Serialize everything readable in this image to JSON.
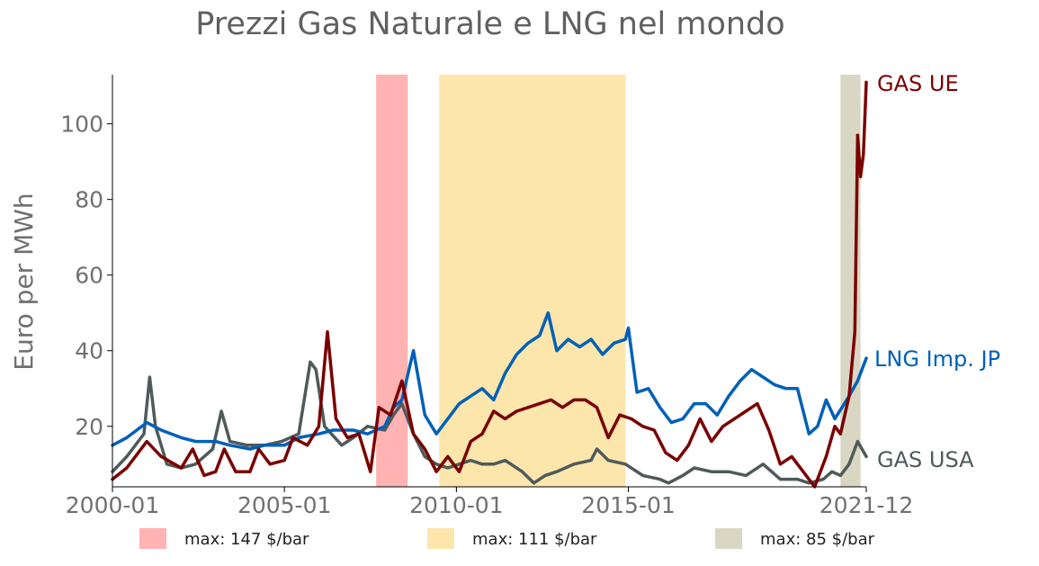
{
  "chart_data": {
    "type": "line",
    "title": "Prezzi Gas Naturale e LNG nel mondo",
    "xlabel": "",
    "ylabel": "Euro per MWh",
    "xlim": [
      "2000-01",
      "2021-12"
    ],
    "ylim": [
      4,
      113
    ],
    "x_ticks": [
      "2000-01",
      "2005-01",
      "2010-01",
      "2015-01",
      "2021-12"
    ],
    "y_ticks": [
      20,
      40,
      60,
      80,
      100
    ],
    "grid": false,
    "highlight_bands": [
      {
        "start": "2007-09",
        "end": "2008-08",
        "color": "#ffb3b3",
        "label": "max: 147 $/bar"
      },
      {
        "start": "2009-07",
        "end": "2014-12",
        "color": "#fce6ac",
        "label": "max: 111 $/bar"
      },
      {
        "start": "2021-03",
        "end": "2021-10",
        "color": "#d9d7c3",
        "label": "max: 85 $/bar"
      }
    ],
    "series": [
      {
        "name": "GAS UE",
        "color": "#7a0000",
        "points": [
          [
            "2000-01",
            6
          ],
          [
            "2000-06",
            9
          ],
          [
            "2001-01",
            16
          ],
          [
            "2001-06",
            12
          ],
          [
            "2002-01",
            9
          ],
          [
            "2002-05",
            14
          ],
          [
            "2002-09",
            7
          ],
          [
            "2003-01",
            8
          ],
          [
            "2003-04",
            14
          ],
          [
            "2003-08",
            8
          ],
          [
            "2004-01",
            8
          ],
          [
            "2004-04",
            14
          ],
          [
            "2004-08",
            10
          ],
          [
            "2005-01",
            11
          ],
          [
            "2005-04",
            17
          ],
          [
            "2005-09",
            15
          ],
          [
            "2006-01",
            20
          ],
          [
            "2006-04",
            45
          ],
          [
            "2006-07",
            22
          ],
          [
            "2006-11",
            17
          ],
          [
            "2007-03",
            18
          ],
          [
            "2007-07",
            8
          ],
          [
            "2007-10",
            25
          ],
          [
            "2008-02",
            23
          ],
          [
            "2008-06",
            32
          ],
          [
            "2008-10",
            18
          ],
          [
            "2009-02",
            14
          ],
          [
            "2009-06",
            8
          ],
          [
            "2009-10",
            12
          ],
          [
            "2010-02",
            8
          ],
          [
            "2010-06",
            16
          ],
          [
            "2010-10",
            18
          ],
          [
            "2011-02",
            24
          ],
          [
            "2011-06",
            22
          ],
          [
            "2011-10",
            24
          ],
          [
            "2012-02",
            25
          ],
          [
            "2012-06",
            26
          ],
          [
            "2012-10",
            27
          ],
          [
            "2013-02",
            25
          ],
          [
            "2013-06",
            27
          ],
          [
            "2013-10",
            27
          ],
          [
            "2014-02",
            25
          ],
          [
            "2014-06",
            17
          ],
          [
            "2014-10",
            23
          ],
          [
            "2015-02",
            22
          ],
          [
            "2015-06",
            20
          ],
          [
            "2015-10",
            19
          ],
          [
            "2016-02",
            13
          ],
          [
            "2016-06",
            11
          ],
          [
            "2016-10",
            15
          ],
          [
            "2017-02",
            22
          ],
          [
            "2017-06",
            16
          ],
          [
            "2017-10",
            20
          ],
          [
            "2018-02",
            22
          ],
          [
            "2018-06",
            24
          ],
          [
            "2018-10",
            26
          ],
          [
            "2019-02",
            19
          ],
          [
            "2019-06",
            10
          ],
          [
            "2019-10",
            12
          ],
          [
            "2020-02",
            8
          ],
          [
            "2020-06",
            4
          ],
          [
            "2020-10",
            12
          ],
          [
            "2021-01",
            20
          ],
          [
            "2021-03",
            18
          ],
          [
            "2021-06",
            28
          ],
          [
            "2021-08",
            45
          ],
          [
            "2021-09",
            97
          ],
          [
            "2021-10",
            86
          ],
          [
            "2021-11",
            92
          ],
          [
            "2021-12",
            111
          ]
        ]
      },
      {
        "name": "LNG Imp. JP",
        "color": "#0060b8",
        "points": [
          [
            "2000-01",
            15
          ],
          [
            "2000-06",
            17
          ],
          [
            "2001-01",
            21
          ],
          [
            "2001-06",
            19
          ],
          [
            "2002-01",
            17
          ],
          [
            "2002-06",
            16
          ],
          [
            "2003-01",
            16
          ],
          [
            "2003-06",
            15
          ],
          [
            "2004-01",
            14
          ],
          [
            "2004-06",
            15
          ],
          [
            "2005-01",
            15
          ],
          [
            "2005-06",
            17
          ],
          [
            "2006-01",
            18
          ],
          [
            "2006-06",
            19
          ],
          [
            "2007-01",
            19
          ],
          [
            "2007-06",
            18
          ],
          [
            "2007-12",
            20
          ],
          [
            "2008-03",
            25
          ],
          [
            "2008-06",
            27
          ],
          [
            "2008-10",
            40
          ],
          [
            "2009-02",
            23
          ],
          [
            "2009-06",
            18
          ],
          [
            "2009-10",
            22
          ],
          [
            "2010-02",
            26
          ],
          [
            "2010-06",
            28
          ],
          [
            "2010-10",
            30
          ],
          [
            "2011-02",
            27
          ],
          [
            "2011-06",
            34
          ],
          [
            "2011-10",
            39
          ],
          [
            "2012-02",
            42
          ],
          [
            "2012-06",
            44
          ],
          [
            "2012-09",
            50
          ],
          [
            "2012-12",
            40
          ],
          [
            "2013-04",
            43
          ],
          [
            "2013-08",
            41
          ],
          [
            "2013-12",
            43
          ],
          [
            "2014-04",
            39
          ],
          [
            "2014-08",
            42
          ],
          [
            "2014-12",
            43
          ],
          [
            "2015-01",
            46
          ],
          [
            "2015-04",
            29
          ],
          [
            "2015-08",
            30
          ],
          [
            "2015-12",
            25
          ],
          [
            "2016-04",
            21
          ],
          [
            "2016-08",
            22
          ],
          [
            "2016-12",
            26
          ],
          [
            "2017-04",
            26
          ],
          [
            "2017-08",
            23
          ],
          [
            "2017-12",
            28
          ],
          [
            "2018-04",
            32
          ],
          [
            "2018-08",
            35
          ],
          [
            "2018-12",
            33
          ],
          [
            "2019-04",
            31
          ],
          [
            "2019-08",
            30
          ],
          [
            "2019-12",
            30
          ],
          [
            "2020-04",
            18
          ],
          [
            "2020-07",
            20
          ],
          [
            "2020-10",
            27
          ],
          [
            "2021-01",
            22
          ],
          [
            "2021-06",
            28
          ],
          [
            "2021-09",
            32
          ],
          [
            "2021-12",
            38
          ]
        ]
      },
      {
        "name": "GAS USA",
        "color": "#4f5a5a",
        "points": [
          [
            "2000-01",
            8
          ],
          [
            "2000-06",
            12
          ],
          [
            "2000-12",
            18
          ],
          [
            "2001-02",
            33
          ],
          [
            "2001-04",
            20
          ],
          [
            "2001-08",
            10
          ],
          [
            "2002-01",
            9
          ],
          [
            "2002-06",
            10
          ],
          [
            "2002-12",
            14
          ],
          [
            "2003-03",
            24
          ],
          [
            "2003-06",
            16
          ],
          [
            "2003-12",
            15
          ],
          [
            "2004-06",
            15
          ],
          [
            "2004-12",
            16
          ],
          [
            "2005-06",
            18
          ],
          [
            "2005-10",
            37
          ],
          [
            "2005-12",
            35
          ],
          [
            "2006-03",
            20
          ],
          [
            "2006-09",
            15
          ],
          [
            "2007-01",
            17
          ],
          [
            "2007-06",
            20
          ],
          [
            "2007-12",
            19
          ],
          [
            "2008-03",
            23
          ],
          [
            "2008-06",
            26
          ],
          [
            "2008-10",
            18
          ],
          [
            "2009-02",
            12
          ],
          [
            "2009-06",
            10
          ],
          [
            "2009-10",
            9
          ],
          [
            "2010-02",
            10
          ],
          [
            "2010-06",
            11
          ],
          [
            "2010-10",
            10
          ],
          [
            "2011-02",
            10
          ],
          [
            "2011-06",
            11
          ],
          [
            "2011-12",
            8
          ],
          [
            "2012-04",
            5
          ],
          [
            "2012-08",
            7
          ],
          [
            "2012-12",
            8
          ],
          [
            "2013-06",
            10
          ],
          [
            "2013-12",
            11
          ],
          [
            "2014-02",
            14
          ],
          [
            "2014-06",
            11
          ],
          [
            "2014-12",
            10
          ],
          [
            "2015-06",
            7
          ],
          [
            "2015-12",
            6
          ],
          [
            "2016-03",
            5
          ],
          [
            "2016-08",
            7
          ],
          [
            "2016-12",
            9
          ],
          [
            "2017-06",
            8
          ],
          [
            "2017-12",
            8
          ],
          [
            "2018-06",
            7
          ],
          [
            "2018-12",
            10
          ],
          [
            "2019-06",
            6
          ],
          [
            "2019-12",
            6
          ],
          [
            "2020-04",
            5
          ],
          [
            "2020-09",
            6
          ],
          [
            "2020-12",
            8
          ],
          [
            "2021-03",
            7
          ],
          [
            "2021-06",
            10
          ],
          [
            "2021-09",
            16
          ],
          [
            "2021-12",
            12
          ]
        ]
      }
    ]
  }
}
